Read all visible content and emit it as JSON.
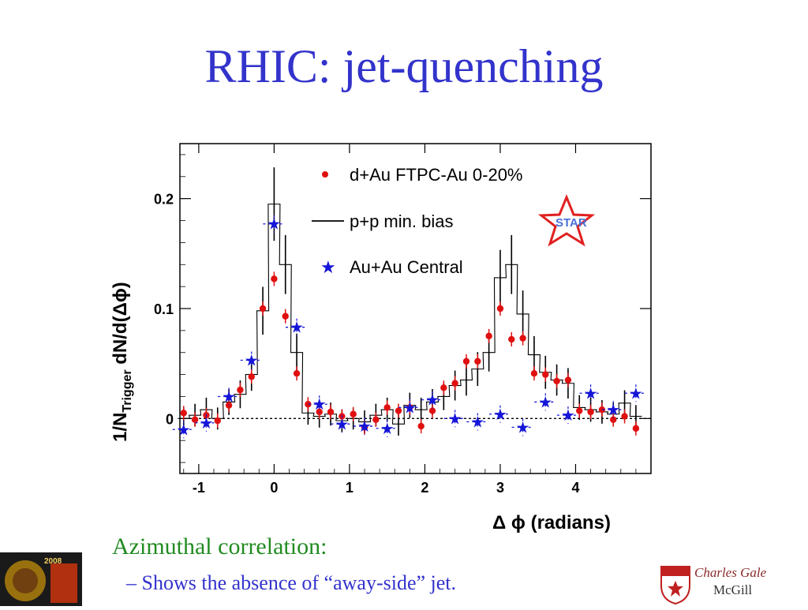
{
  "slide": {
    "title": "RHIC: jet-quenching",
    "subtitle": "Azimuthal correlation:",
    "bullet": "–  Shows the absence of “away-side” jet.",
    "credit_name": "Charles Gale",
    "credit_institution": "McGill",
    "logo_left_text": "2008"
  },
  "chart_data": {
    "type": "scatter",
    "xlabel": "Δ ϕ (radians)",
    "ylabel": "1/N_Trigger dN/d(Δϕ)",
    "ylabel_main": "1/N",
    "ylabel_sub": "Trigger",
    "ylabel_tail": " dN/d(Δϕ)",
    "xlim": [
      -1.25,
      5.0
    ],
    "ylim": [
      -0.05,
      0.25
    ],
    "x_ticks": [
      -1,
      0,
      1,
      2,
      3,
      4
    ],
    "x_tick_labels": [
      "-1",
      "0",
      "1",
      "2",
      "3",
      "4"
    ],
    "y_ticks": [
      0,
      0.1,
      0.2
    ],
    "y_tick_labels": [
      "0",
      "0.1",
      "0.2"
    ],
    "badge": "STAR",
    "zero_line": "dotted",
    "legend_position": "top-right",
    "series": [
      {
        "name": "d+Au FTPC-Au 0-20%",
        "marker": "circle",
        "color": "#e01010",
        "points": [
          [
            -1.2,
            0.005
          ],
          [
            -1.05,
            -0.001
          ],
          [
            -0.9,
            0.003
          ],
          [
            -0.75,
            -0.002
          ],
          [
            -0.6,
            0.012
          ],
          [
            -0.45,
            0.026
          ],
          [
            -0.3,
            0.038
          ],
          [
            -0.15,
            0.1
          ],
          [
            0.0,
            0.127
          ],
          [
            0.15,
            0.093
          ],
          [
            0.3,
            0.041
          ],
          [
            0.45,
            0.013
          ],
          [
            0.6,
            0.006
          ],
          [
            0.75,
            0.006
          ],
          [
            0.9,
            0.002
          ],
          [
            1.05,
            0.004
          ],
          [
            1.2,
            -0.008
          ],
          [
            1.35,
            -0.001
          ],
          [
            1.5,
            0.01
          ],
          [
            1.65,
            0.007
          ],
          [
            1.8,
            0.01
          ],
          [
            1.95,
            -0.007
          ],
          [
            2.1,
            0.007
          ],
          [
            2.25,
            0.028
          ],
          [
            2.4,
            0.032
          ],
          [
            2.55,
            0.052
          ],
          [
            2.7,
            0.052
          ],
          [
            2.85,
            0.075
          ],
          [
            3.0,
            0.1
          ],
          [
            3.15,
            0.072
          ],
          [
            3.3,
            0.073
          ],
          [
            3.45,
            0.041
          ],
          [
            3.6,
            0.04
          ],
          [
            3.75,
            0.034
          ],
          [
            3.9,
            0.035
          ],
          [
            4.05,
            0.007
          ],
          [
            4.2,
            0.006
          ],
          [
            4.35,
            0.008
          ],
          [
            4.5,
            -0.001
          ],
          [
            4.65,
            0.002
          ],
          [
            4.8,
            -0.009
          ]
        ]
      },
      {
        "name": "Au+Au Central",
        "marker": "star",
        "color": "#1515d8",
        "points": [
          [
            -1.2,
            -0.01
          ],
          [
            -0.9,
            -0.004
          ],
          [
            -0.6,
            0.02
          ],
          [
            -0.3,
            0.053
          ],
          [
            0.0,
            0.177
          ],
          [
            0.3,
            0.083
          ],
          [
            0.6,
            0.013
          ],
          [
            0.9,
            -0.005
          ],
          [
            1.2,
            -0.007
          ],
          [
            1.5,
            -0.009
          ],
          [
            1.8,
            0.01
          ],
          [
            2.1,
            0.017
          ],
          [
            2.4,
            0.0
          ],
          [
            2.7,
            -0.003
          ],
          [
            3.0,
            0.004
          ],
          [
            3.3,
            -0.008
          ],
          [
            3.6,
            0.015
          ],
          [
            3.9,
            0.003
          ],
          [
            4.2,
            0.023
          ],
          [
            4.5,
            0.008
          ],
          [
            4.8,
            0.023
          ]
        ]
      },
      {
        "name": "p+p min. bias",
        "marker": "histogram",
        "color": "#000000",
        "bin_width": 0.157,
        "points": [
          [
            -1.2,
            0.0
          ],
          [
            -1.05,
            0.003
          ],
          [
            -0.9,
            0.008
          ],
          [
            -0.75,
            0.0
          ],
          [
            -0.6,
            0.015
          ],
          [
            -0.45,
            0.022
          ],
          [
            -0.3,
            0.04
          ],
          [
            -0.15,
            0.098
          ],
          [
            0.0,
            0.195
          ],
          [
            0.15,
            0.14
          ],
          [
            0.3,
            0.06
          ],
          [
            0.45,
            0.005
          ],
          [
            0.6,
            0.002
          ],
          [
            0.75,
            0.004
          ],
          [
            0.9,
            -0.002
          ],
          [
            1.05,
            0.0
          ],
          [
            1.2,
            -0.003
          ],
          [
            1.35,
            0.003
          ],
          [
            1.5,
            0.008
          ],
          [
            1.65,
            -0.005
          ],
          [
            1.8,
            0.012
          ],
          [
            1.95,
            0.008
          ],
          [
            2.1,
            0.015
          ],
          [
            2.25,
            0.02
          ],
          [
            2.4,
            0.03
          ],
          [
            2.55,
            0.035
          ],
          [
            2.7,
            0.045
          ],
          [
            2.85,
            0.06
          ],
          [
            3.0,
            0.128
          ],
          [
            3.15,
            0.14
          ],
          [
            3.3,
            0.095
          ],
          [
            3.45,
            0.058
          ],
          [
            3.6,
            0.042
          ],
          [
            3.75,
            0.035
          ],
          [
            3.9,
            0.032
          ],
          [
            4.05,
            0.01
          ],
          [
            4.2,
            0.008
          ],
          [
            4.35,
            0.006
          ],
          [
            4.5,
            0.004
          ],
          [
            4.65,
            0.014
          ],
          [
            4.8,
            0.002
          ]
        ]
      }
    ]
  },
  "colors": {
    "title": "#3333cc",
    "subtitle": "#228B22",
    "bullet": "#3333cc"
  }
}
